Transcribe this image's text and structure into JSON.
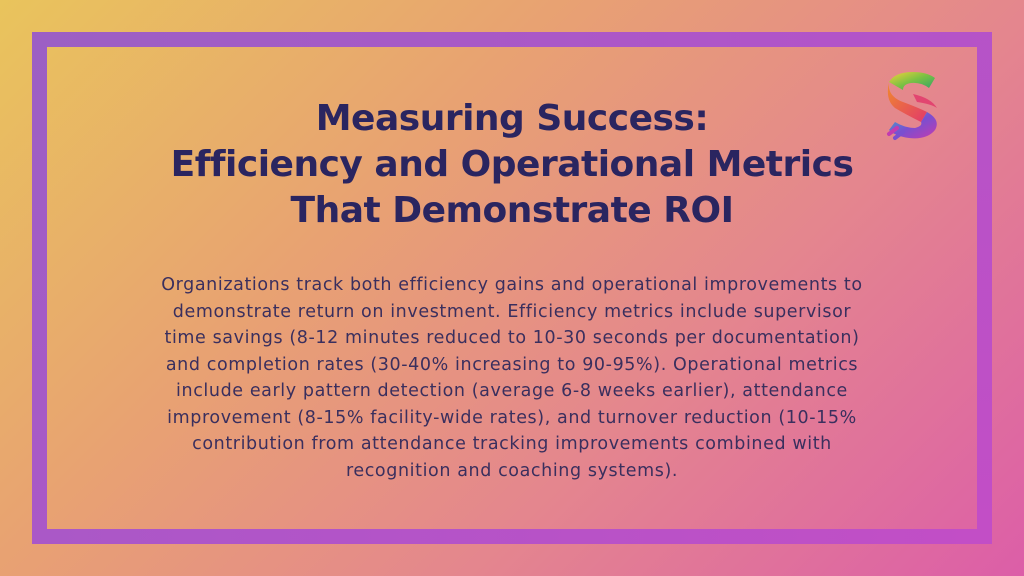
{
  "slide": {
    "title_lines": [
      "Measuring Success:",
      "Efficiency and Operational Metrics",
      "That Demonstrate ROI"
    ],
    "body_lines": [
      "Organizations track both efficiency gains and operational improvements to",
      "demonstrate return on investment. Efficiency metrics include supervisor",
      "time savings (8-12 minutes reduced to 10-30 seconds per documentation)",
      "and completion rates (30-40% increasing to 90-95%). Operational metrics",
      "include early pattern detection (average 6-8 weeks earlier), attendance",
      "improvement (8-15% facility-wide rates), and turnover reduction (10-15%",
      "contribution from attendance tracking improvements combined with",
      "recognition and coaching systems)."
    ]
  },
  "logo": {
    "icon": "stylized-s-logo"
  },
  "colors": {
    "title": "#2a2560",
    "body": "#3a2f5e",
    "frame": "#b055c8"
  }
}
